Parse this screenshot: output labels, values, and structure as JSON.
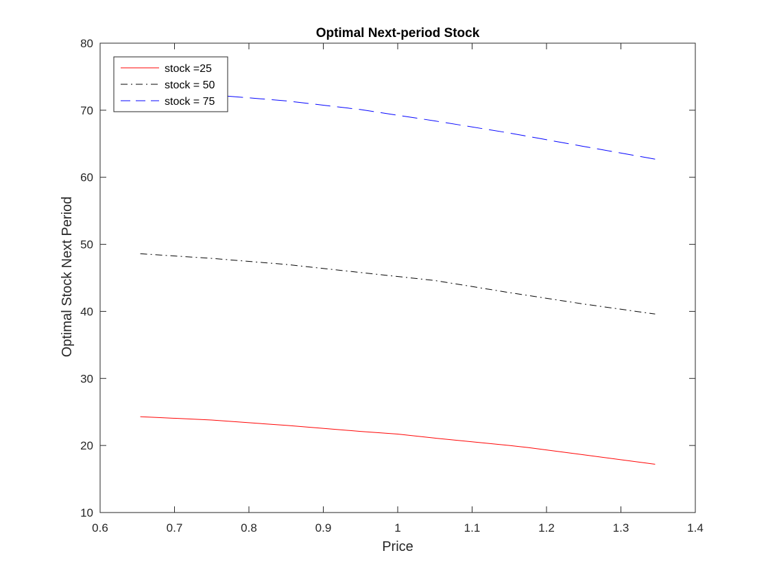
{
  "chart_data": {
    "type": "line",
    "title": "Optimal Next-period Stock",
    "xlabel": "Price",
    "ylabel": "Optimal Stock Next Period",
    "xlim": [
      0.6,
      1.4
    ],
    "ylim": [
      10,
      80
    ],
    "x_ticks": [
      0.6,
      0.7,
      0.8,
      0.9,
      1.0,
      1.1,
      1.2,
      1.3,
      1.4
    ],
    "x_tick_labels": [
      "0.6",
      "0.7",
      "0.8",
      "0.9",
      "1",
      "1.1",
      "1.2",
      "1.3",
      "1.4"
    ],
    "y_ticks": [
      10,
      20,
      30,
      40,
      50,
      60,
      70,
      80
    ],
    "y_tick_labels": [
      "10",
      "20",
      "30",
      "40",
      "50",
      "60",
      "70",
      "80"
    ],
    "grid": false,
    "legend_position": "top-left",
    "series": [
      {
        "name": "stock =25",
        "color": "#ff0000",
        "line_style": "solid",
        "x": [
          0.654,
          0.75,
          0.85,
          0.95,
          1.0,
          1.05,
          1.15,
          1.175,
          1.25,
          1.346
        ],
        "y": [
          24.3,
          23.8,
          23.0,
          22.1,
          21.7,
          21.1,
          20.0,
          19.7,
          18.6,
          17.2
        ]
      },
      {
        "name": "stock = 50",
        "color": "#000000",
        "line_style": "dashdot",
        "x": [
          0.654,
          0.75,
          0.85,
          0.95,
          1.05,
          1.15,
          1.25,
          1.346
        ],
        "y": [
          48.6,
          47.9,
          47.0,
          45.8,
          44.6,
          42.8,
          41.1,
          39.6
        ]
      },
      {
        "name": "stock = 75",
        "color": "#0000ff",
        "line_style": "dashed",
        "x": [
          0.654,
          0.75,
          0.85,
          0.95,
          1.05,
          1.15,
          1.25,
          1.346
        ],
        "y": [
          72.7,
          72.3,
          71.4,
          70.1,
          68.4,
          66.6,
          64.6,
          62.7
        ]
      }
    ]
  }
}
